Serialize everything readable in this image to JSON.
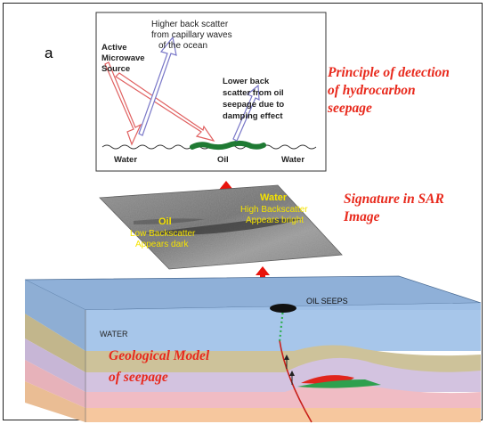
{
  "panel_label": "a",
  "principle": {
    "title_lines": [
      "Principle of detection",
      "of hydrocarbon",
      "seepage"
    ],
    "active_source_lines": [
      "Active",
      "Microwave",
      "Source"
    ],
    "higher_back_lines": [
      "Higher   back    scatter",
      "from capillary waves",
      "of the ocean"
    ],
    "lower_back_lines": [
      "Lower          back",
      "scatter  from  oil",
      "seepage  due  to",
      "damping effect"
    ],
    "water_left": "Water",
    "oil": "Oil",
    "water_right": "Water"
  },
  "sar": {
    "title_lines": [
      "Signature in SAR",
      "Image"
    ],
    "water_title": "Water",
    "water_lines": [
      "High Backscatter",
      "Appears bright"
    ],
    "oil_title": "Oil",
    "oil_lines": [
      "Low Backscatter",
      "Appears dark"
    ]
  },
  "geo": {
    "oil_seeps": "OIL SEEPS",
    "water": "WATER",
    "title_lines": [
      "Geological Model",
      "of seepage"
    ]
  },
  "colors": {
    "title_red": "#e8291c",
    "sar_yellow": "#f4e200",
    "oil_green": "#1f7a33",
    "up_arrow": "#e8130c"
  }
}
